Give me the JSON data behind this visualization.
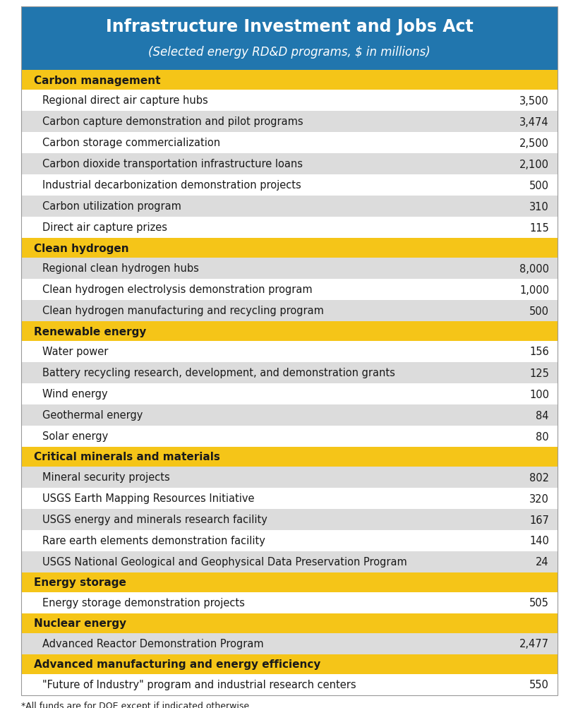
{
  "title_line1": "Infrastructure Investment and Jobs Act",
  "title_line2": "(Selected energy RD&D programs, $ in millions)",
  "title_bg": "#2176AE",
  "title_color": "#FFFFFF",
  "category_bg": "#F5C518",
  "category_color": "#1A1A1A",
  "row_bg_alt1": "#FFFFFF",
  "row_bg_alt2": "#DCDCDC",
  "row_text_color": "#1A1A1A",
  "footnote": "*All funds are for DOE except if indicated otherwise.",
  "outer_bg": "#FFFFFF",
  "sections": [
    {
      "category": "Carbon management",
      "items": [
        [
          "Regional direct air capture hubs",
          "3,500"
        ],
        [
          "Carbon capture demonstration and pilot programs",
          "3,474"
        ],
        [
          "Carbon storage commercialization",
          "2,500"
        ],
        [
          "Carbon dioxide transportation infrastructure loans",
          "2,100"
        ],
        [
          "Industrial decarbonization demonstration projects",
          "500"
        ],
        [
          "Carbon utilization program",
          "310"
        ],
        [
          "Direct air capture prizes",
          "115"
        ]
      ]
    },
    {
      "category": "Clean hydrogen",
      "items": [
        [
          "Regional clean hydrogen hubs",
          "8,000"
        ],
        [
          "Clean hydrogen electrolysis demonstration program",
          "1,000"
        ],
        [
          "Clean hydrogen manufacturing and recycling program",
          "500"
        ]
      ]
    },
    {
      "category": "Renewable energy",
      "items": [
        [
          "Water power",
          "156"
        ],
        [
          "Battery recycling research, development, and demonstration grants",
          "125"
        ],
        [
          "Wind energy",
          "100"
        ],
        [
          "Geothermal energy",
          "84"
        ],
        [
          "Solar energy",
          "80"
        ]
      ]
    },
    {
      "category": "Critical minerals and materials",
      "items": [
        [
          "Mineral security projects",
          "802"
        ],
        [
          "USGS Earth Mapping Resources Initiative",
          "320"
        ],
        [
          "USGS energy and minerals research facility",
          "167"
        ],
        [
          "Rare earth elements demonstration facility",
          "140"
        ],
        [
          "USGS National Geological and Geophysical Data Preservation Program",
          "24"
        ]
      ]
    },
    {
      "category": "Energy storage",
      "items": [
        [
          "Energy storage demonstration projects",
          "505"
        ]
      ]
    },
    {
      "category": "Nuclear energy",
      "items": [
        [
          "Advanced Reactor Demonstration Program",
          "2,477"
        ]
      ]
    },
    {
      "category": "Advanced manufacturing and energy efficiency",
      "items": [
        [
          "\"Future of Industry\" program and industrial research centers",
          "550"
        ]
      ]
    }
  ]
}
